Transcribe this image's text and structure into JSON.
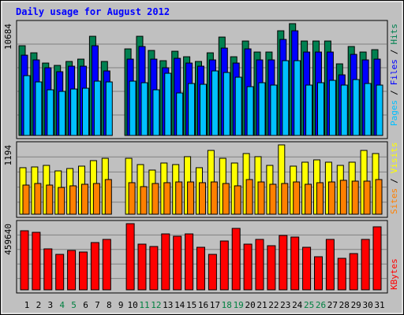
{
  "title": "Daily usage for August 2012",
  "chart_data": [
    {
      "type": "bar",
      "ylim": [
        0,
        10684
      ],
      "yticks": [
        10684
      ],
      "legend_separator": "/",
      "series": [
        {
          "name": "Hits",
          "color": "#008050",
          "values": [
            8573,
            7896,
            6918,
            6693,
            7069,
            7294,
            9475,
            7069,
            0,
            8272,
            9475,
            8122,
            7144,
            8046,
            7520,
            7069,
            7896,
            9400,
            7520,
            9024,
            7971,
            7971,
            10002,
            10684,
            9024,
            9024,
            9024,
            6843,
            8498,
            7971,
            8197
          ]
        },
        {
          "name": "Files",
          "color": "#0000ff",
          "values": [
            7670,
            7219,
            6467,
            6091,
            6618,
            6618,
            8573,
            6166,
            0,
            7294,
            8498,
            7294,
            6467,
            7370,
            6918,
            6618,
            7219,
            8347,
            6918,
            8272,
            7219,
            7219,
            9174,
            10002,
            7971,
            7971,
            7971,
            5790,
            7746,
            7219,
            7294
          ]
        },
        {
          "name": "Pages",
          "color": "#00c0ff",
          "values": [
            5715,
            5114,
            4362,
            4211,
            4437,
            4512,
            5189,
            5114,
            0,
            5189,
            5038,
            4362,
            5941,
            4061,
            4963,
            4888,
            6166,
            6016,
            5565,
            4662,
            5038,
            4813,
            7144,
            7144,
            4813,
            5038,
            5264,
            4813,
            5339,
            4963,
            4813
          ]
        }
      ]
    },
    {
      "type": "bar",
      "ylim": [
        0,
        1194
      ],
      "yticks": [
        1194
      ],
      "legend_separator": "/",
      "series": [
        {
          "name": "Visits",
          "color": "#ffff00",
          "values": [
            801,
            814,
            841,
            746,
            787,
            828,
            923,
            963,
            0,
            963,
            855,
            760,
            882,
            855,
            991,
            801,
            1099,
            963,
            882,
            1045,
            991,
            841,
            1194,
            828,
            896,
            936,
            896,
            841,
            896,
            1099,
            1045
          ]
        },
        {
          "name": "Sites",
          "color": "#ff8000",
          "values": [
            502,
            529,
            502,
            461,
            489,
            516,
            529,
            597,
            0,
            543,
            475,
            529,
            543,
            556,
            556,
            543,
            556,
            529,
            489,
            597,
            556,
            516,
            529,
            556,
            516,
            543,
            556,
            584,
            570,
            570,
            597
          ]
        }
      ]
    },
    {
      "type": "bar",
      "ylim": [
        0,
        459640
      ],
      "yticks": [
        459640
      ],
      "series": [
        {
          "name": "KBytes",
          "color": "#ff0000",
          "values": [
            410400,
            399456,
            284544,
            246240,
            273600,
            262656,
            328320,
            350208,
            0,
            459640,
            317376,
            300960,
            388512,
            372096,
            388512,
            295488,
            246240,
            339264,
            426816,
            317376,
            350208,
            306432,
            377568,
            366624,
            295488,
            229824,
            350208,
            218880,
            251712,
            350208,
            437760
          ]
        }
      ],
      "categories": [
        "1",
        "2",
        "3",
        "4",
        "5",
        "6",
        "7",
        "8",
        "9",
        "10",
        "11",
        "12",
        "13",
        "14",
        "15",
        "16",
        "17",
        "18",
        "19",
        "20",
        "21",
        "22",
        "23",
        "24",
        "25",
        "26",
        "27",
        "28",
        "29",
        "30",
        "31"
      ],
      "x_label_colors": [
        "#000000",
        "#000000",
        "#000000",
        "#008040",
        "#008040",
        "#000000",
        "#000000",
        "#000000",
        "#000000",
        "#000000",
        "#008040",
        "#008040",
        "#000000",
        "#000000",
        "#000000",
        "#000000",
        "#000000",
        "#008040",
        "#008040",
        "#000000",
        "#000000",
        "#000000",
        "#000000",
        "#000000",
        "#008040",
        "#008040",
        "#000000",
        "#000000",
        "#000000",
        "#000000",
        "#000000"
      ]
    }
  ]
}
